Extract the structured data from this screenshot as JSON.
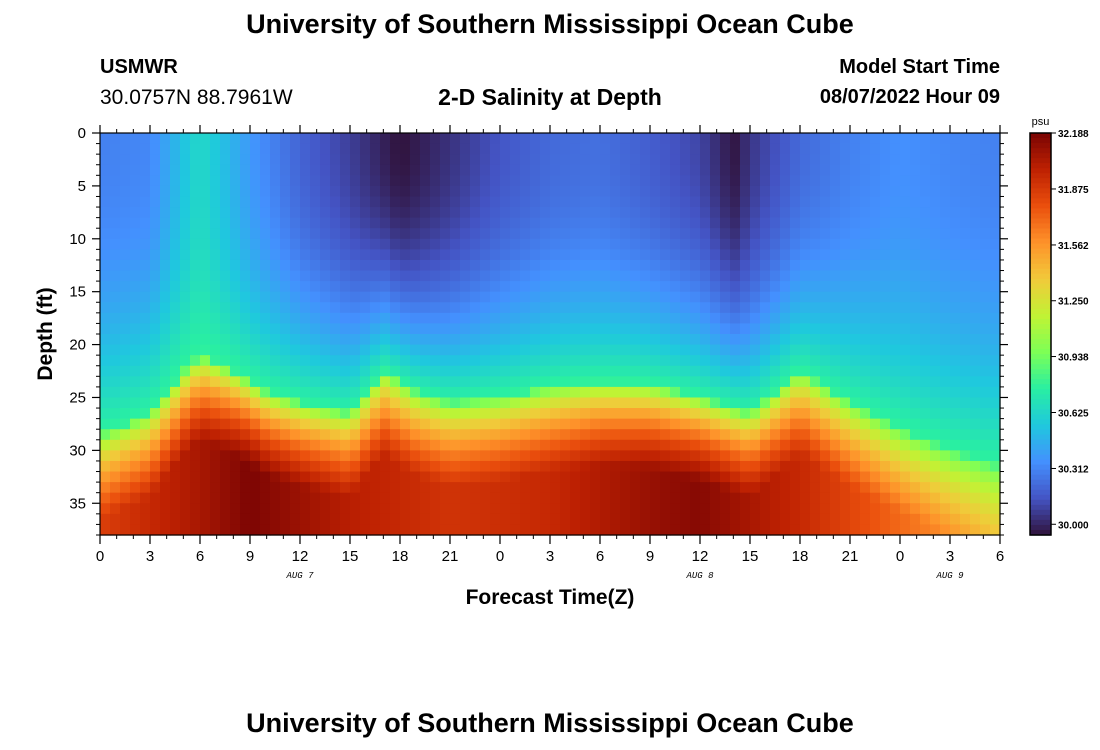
{
  "header": {
    "title": "University of Southern Mississippi Ocean Cube",
    "station": "USMWR",
    "coords": "30.0757N  88.7961W",
    "plot_title": "2-D Salinity at Depth",
    "start_label": "Model Start Time",
    "start_value": "08/07/2022 Hour 09"
  },
  "footer": {
    "title": "University of Southern Mississippi Ocean Cube"
  },
  "colors": {
    "palette": [
      "#30123b",
      "#4454c4",
      "#4490fe",
      "#1fc8de",
      "#29efa2",
      "#7dff56",
      "#c1f334",
      "#f1ca3a",
      "#fe922a",
      "#ea4f0d",
      "#be2102",
      "#7a0403"
    ]
  },
  "chart_data": {
    "type": "heatmap",
    "xlabel": "Forecast Time(Z)",
    "ylabel": "Depth (ft)",
    "xlim": [
      0,
      54
    ],
    "ylim": [
      38,
      0
    ],
    "x_ticks": [
      "0",
      "3",
      "6",
      "9",
      "12",
      "15",
      "18",
      "21",
      "0",
      "3",
      "6",
      "9",
      "12",
      "15",
      "18",
      "21",
      "0",
      "3",
      "6"
    ],
    "y_ticks": [
      "0",
      "5",
      "10",
      "15",
      "20",
      "25",
      "30",
      "35"
    ],
    "date_labels": [
      {
        "hour": 12,
        "label": "AUG 7"
      },
      {
        "hour": 36,
        "label": "AUG 8"
      },
      {
        "hour": 51,
        "label": "AUG 9"
      }
    ],
    "colorbar": {
      "units": "psu",
      "min": 29.94,
      "max": 32.188,
      "ticks": [
        "32.188",
        "31.875",
        "31.562",
        "31.250",
        "30.938",
        "30.625",
        "30.312",
        "30.000"
      ]
    },
    "halocline_depth_ft": [
      {
        "hour": 0,
        "depth": 28.5
      },
      {
        "hour": 3,
        "depth": 26.5
      },
      {
        "hour": 5,
        "depth": 22.5
      },
      {
        "hour": 6,
        "depth": 21
      },
      {
        "hour": 8,
        "depth": 22.5
      },
      {
        "hour": 10,
        "depth": 24.5
      },
      {
        "hour": 12,
        "depth": 25.5
      },
      {
        "hour": 15,
        "depth": 26.5
      },
      {
        "hour": 17,
        "depth": 22.5
      },
      {
        "hour": 19,
        "depth": 24.5
      },
      {
        "hour": 21,
        "depth": 25.5
      },
      {
        "hour": 24,
        "depth": 25
      },
      {
        "hour": 27,
        "depth": 24
      },
      {
        "hour": 30,
        "depth": 23.5
      },
      {
        "hour": 33,
        "depth": 23.8
      },
      {
        "hour": 36,
        "depth": 25
      },
      {
        "hour": 39,
        "depth": 26.5
      },
      {
        "hour": 42,
        "depth": 22.5
      },
      {
        "hour": 45,
        "depth": 25.5
      },
      {
        "hour": 48,
        "depth": 28
      },
      {
        "hour": 51,
        "depth": 30
      },
      {
        "hour": 54,
        "depth": 31.5
      }
    ],
    "surface_salinity_psu": [
      {
        "hour": 0,
        "value": 30.3
      },
      {
        "hour": 3,
        "value": 30.32
      },
      {
        "hour": 6,
        "value": 30.64
      },
      {
        "hour": 9,
        "value": 30.38
      },
      {
        "hour": 12,
        "value": 30.2
      },
      {
        "hour": 15,
        "value": 30.08
      },
      {
        "hour": 18,
        "value": 29.94
      },
      {
        "hour": 21,
        "value": 30.04
      },
      {
        "hour": 24,
        "value": 30.15
      },
      {
        "hour": 27,
        "value": 30.22
      },
      {
        "hour": 30,
        "value": 30.24
      },
      {
        "hour": 33,
        "value": 30.18
      },
      {
        "hour": 36,
        "value": 30.1
      },
      {
        "hour": 38,
        "value": 29.95
      },
      {
        "hour": 39,
        "value": 30.05
      },
      {
        "hour": 42,
        "value": 30.22
      },
      {
        "hour": 45,
        "value": 30.3
      },
      {
        "hour": 48,
        "value": 30.35
      },
      {
        "hour": 51,
        "value": 30.32
      },
      {
        "hour": 54,
        "value": 30.3
      }
    ],
    "bottom_salinity_psu": [
      {
        "hour": 0,
        "value": 31.85
      },
      {
        "hour": 6,
        "value": 32.05
      },
      {
        "hour": 9,
        "value": 32.18
      },
      {
        "hour": 15,
        "value": 32.0
      },
      {
        "hour": 21,
        "value": 31.9
      },
      {
        "hour": 27,
        "value": 31.95
      },
      {
        "hour": 33,
        "value": 32.1
      },
      {
        "hour": 36,
        "value": 32.15
      },
      {
        "hour": 42,
        "value": 31.95
      },
      {
        "hour": 48,
        "value": 31.7
      },
      {
        "hour": 54,
        "value": 31.45
      }
    ]
  }
}
